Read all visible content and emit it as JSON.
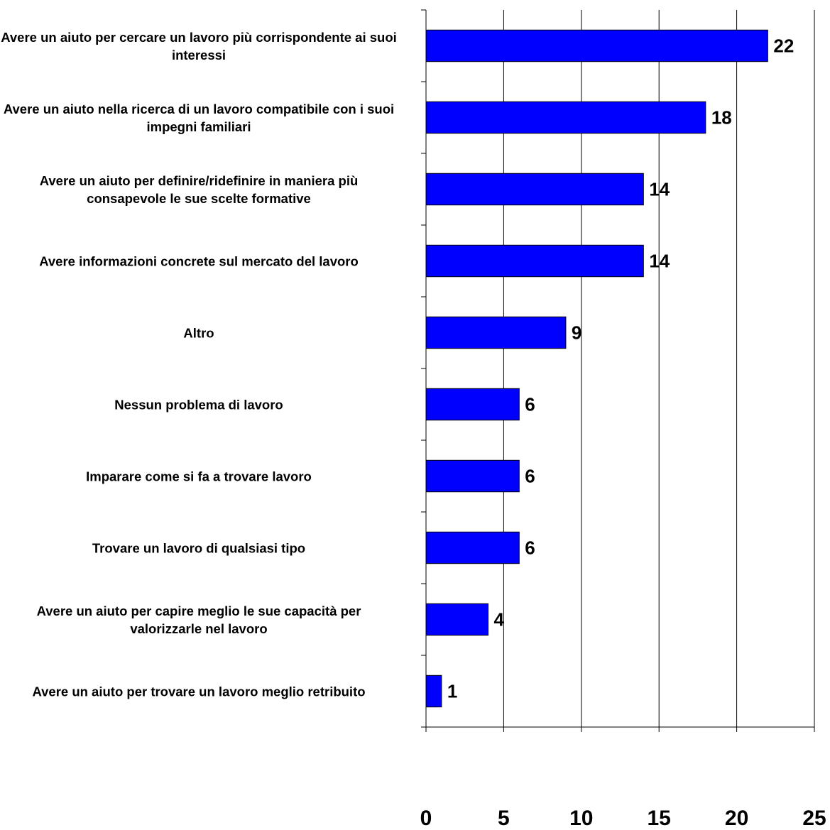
{
  "chart_data": {
    "type": "bar",
    "orientation": "horizontal",
    "categories": [
      "Avere un aiuto per cercare un lavoro più corrispondente ai suoi interessi",
      "Avere un aiuto nella ricerca di un lavoro compatibile con i suoi impegni familiari",
      "Avere un aiuto per definire/ridefinire in maniera più consapevole le sue scelte formative",
      "Avere informazioni concrete sul mercato del lavoro",
      "Altro",
      "Nessun problema di lavoro",
      "Imparare come si fa a trovare lavoro",
      "Trovare un lavoro di qualsiasi tipo",
      "Avere un aiuto per capire meglio le sue capacità per valorizzarle nel lavoro",
      "Avere un aiuto per trovare un lavoro meglio retribuito"
    ],
    "values": [
      22,
      18,
      14,
      14,
      9,
      6,
      6,
      6,
      4,
      1
    ],
    "xlim": [
      0,
      25
    ],
    "xticks": [
      "0",
      "5",
      "10",
      "15",
      "20",
      "25"
    ],
    "grid": "vertical",
    "legend": "none",
    "title": "",
    "xlabel": "",
    "ylabel": "",
    "bar_color": "#0000FF",
    "bar_border_color": "#000000"
  }
}
